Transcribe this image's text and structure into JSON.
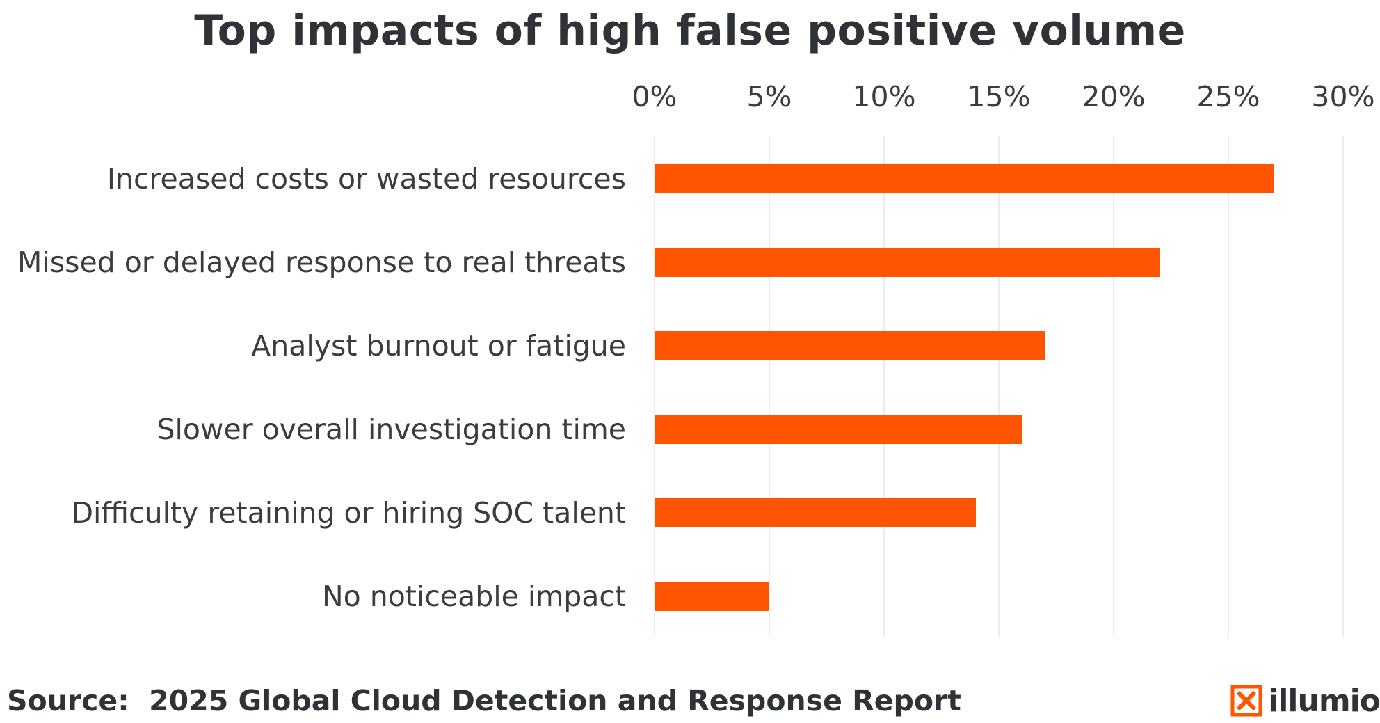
{
  "chart_data": {
    "type": "bar",
    "orientation": "horizontal",
    "title": "Top impacts of high false positive volume",
    "categories": [
      "Increased costs or wasted resources",
      "Missed or delayed response to real threats",
      "Analyst burnout or fatigue",
      "Slower overall investigation time",
      "Difficulty retaining or hiring SOC talent",
      "No noticeable impact"
    ],
    "values": [
      27,
      22,
      17,
      16,
      14,
      5
    ],
    "value_unit": "%",
    "xlim": [
      0,
      30
    ],
    "x_ticks": [
      0,
      5,
      10,
      15,
      20,
      25,
      30
    ],
    "x_tick_labels": [
      "0%",
      "5%",
      "10%",
      "15%",
      "20%",
      "25%",
      "30%"
    ],
    "x_axis_position": "top",
    "grid": true,
    "xlabel": "",
    "ylabel": ""
  },
  "colors": {
    "bar": "#ff5500",
    "text": "#2f3337",
    "grid": "#e6e6e6",
    "brand_accent": "#ff5500"
  },
  "footer": {
    "source": "Source:  2025 Global Cloud Detection and Response Report"
  },
  "brand": {
    "name": "illumio",
    "icon": "illumio-logo-icon"
  }
}
